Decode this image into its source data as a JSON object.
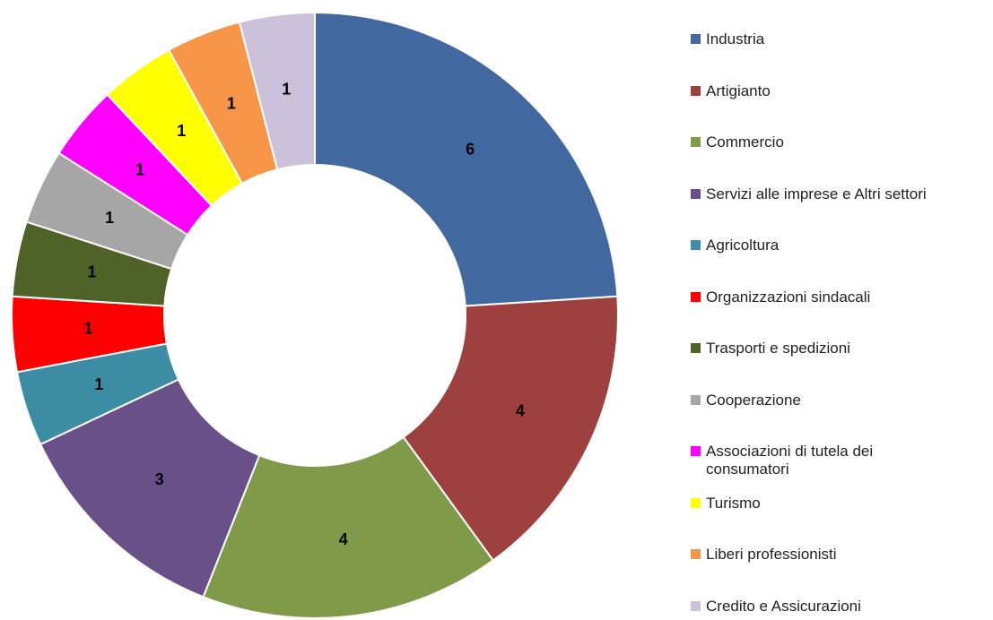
{
  "chart_data": {
    "type": "donut",
    "categories": [
      "Industria",
      "Artigianto",
      "Commercio",
      "Servizi alle imprese e Altri settori",
      "Agricoltura",
      "Organizzazioni sindacali",
      "Trasporti e spedizioni",
      "Cooperazione",
      "Associazioni di tutela dei consumatori",
      "Turismo",
      "Liberi professionisti",
      "Credito e Assicurazioni"
    ],
    "values": [
      6,
      4,
      4,
      3,
      1,
      1,
      1,
      1,
      1,
      1,
      1,
      1
    ],
    "colors": [
      "#4169a0",
      "#9e413e",
      "#7f9b49",
      "#6a5089",
      "#3c8da3",
      "#ff0000",
      "#4f6228",
      "#a6a6a6",
      "#ff00ff",
      "#ffff00",
      "#f79646",
      "#ccc1da"
    ],
    "legend": "right"
  }
}
